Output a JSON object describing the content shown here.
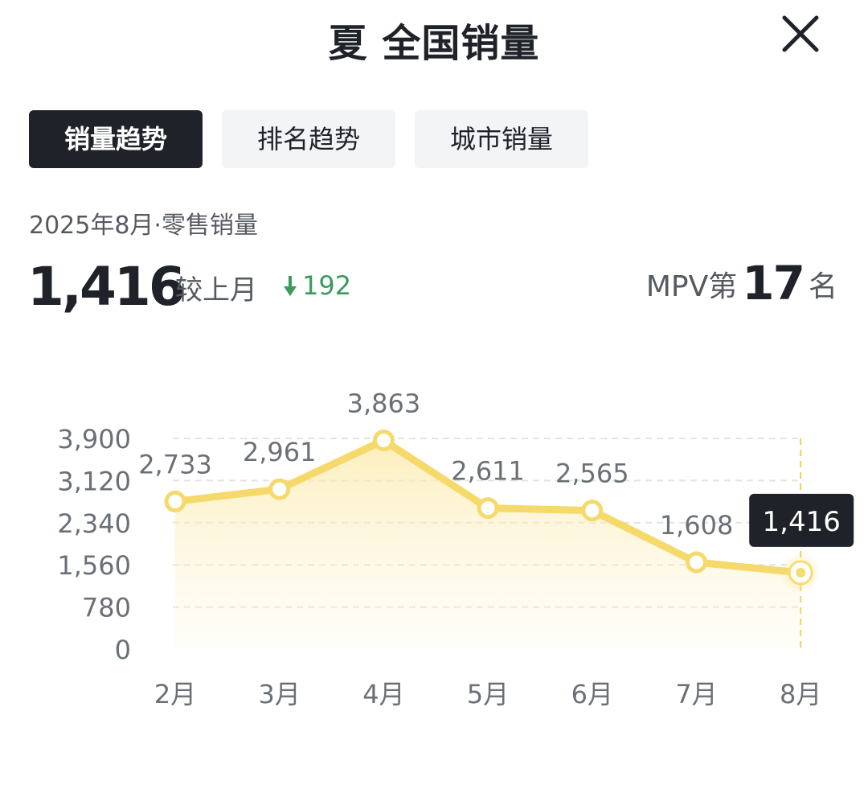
{
  "header": {
    "title": "夏 全国销量",
    "close_icon": "close-icon"
  },
  "tabs": [
    {
      "label": "销量趋势",
      "active": true
    },
    {
      "label": "排名趋势",
      "active": false
    },
    {
      "label": "城市销量",
      "active": false
    }
  ],
  "summary": {
    "period": "2025年8月·零售销量",
    "value": "1,416",
    "compare_label": "较上月",
    "delta_icon": "arrow-down-icon",
    "delta": "192",
    "rank_prefix": "MPV第",
    "rank": "17",
    "rank_suffix": "名"
  },
  "colors": {
    "accent": "#f7dc6f",
    "line": "#f5d96a",
    "delta_down": "#3a9b5c",
    "tooltip_bg": "#1f2329",
    "active_tab": "#1f2329"
  },
  "chart_data": {
    "type": "line",
    "categories": [
      "2月",
      "3月",
      "4月",
      "5月",
      "6月",
      "7月",
      "8月"
    ],
    "values": [
      2733,
      2961,
      3863,
      2611,
      2565,
      1608,
      1416
    ],
    "data_labels": [
      "2,733",
      "2,961",
      "3,863",
      "2,611",
      "2,565",
      "1,608",
      "1,416"
    ],
    "yticks": [
      "0",
      "780",
      "1,560",
      "2,340",
      "3,120",
      "3,900"
    ],
    "ytick_values": [
      0,
      780,
      1560,
      2340,
      3120,
      3900
    ],
    "ylim": [
      0,
      3900
    ],
    "grid": true,
    "highlight_index": 6,
    "tooltip": "1,416"
  }
}
